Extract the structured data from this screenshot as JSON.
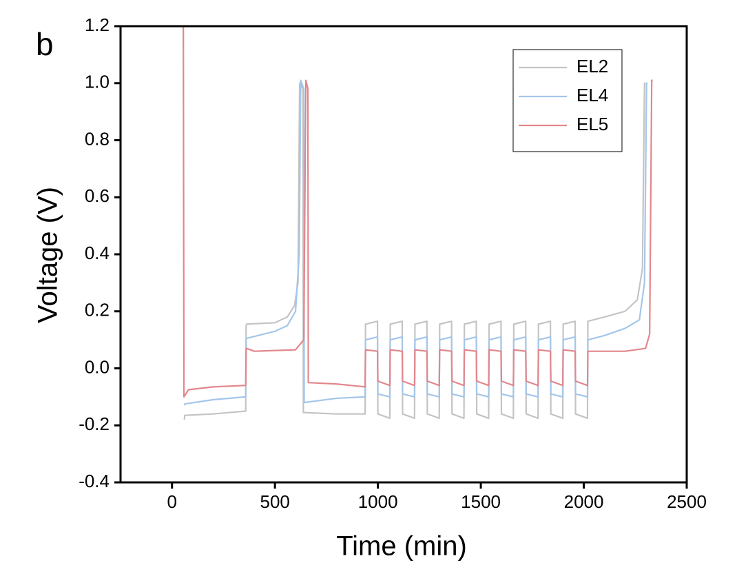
{
  "chart_data": {
    "type": "line",
    "panel_label": "b",
    "x_label": "Time (min)",
    "y_label": "Voltage (V)",
    "xlim": [
      -250,
      2500
    ],
    "ylim": [
      -0.4,
      1.2
    ],
    "xticks": [
      0,
      500,
      1000,
      1500,
      2000,
      2500
    ],
    "yticks": [
      -0.4,
      -0.2,
      {
        "value": 0,
        "label": "0.0"
      },
      0.2,
      0.4,
      0.6,
      0.8,
      {
        "value": 1,
        "label": "1.0"
      },
      1.2
    ],
    "legend": "top right",
    "series": [
      {
        "name": "EL2",
        "color": "#c4c4c4",
        "x": [
          60,
          62,
          200,
          358,
          360,
          362,
          500,
          560,
          595,
          612,
          620,
          636,
          638,
          800,
          938,
          940,
          998,
          1000,
          1058,
          1060,
          1118,
          1120,
          1178,
          1180,
          1238,
          1240,
          1298,
          1300,
          1358,
          1360,
          1418,
          1420,
          1478,
          1480,
          1538,
          1540,
          1598,
          1600,
          1658,
          1660,
          1718,
          1720,
          1778,
          1780,
          1838,
          1840,
          1898,
          1900,
          1958,
          1960,
          2018,
          2020,
          2100,
          2200,
          2260,
          2285,
          2295,
          2300
        ],
        "values": [
          -0.18,
          -0.165,
          -0.16,
          -0.15,
          0.15,
          0.155,
          0.16,
          0.18,
          0.22,
          0.3,
          1.0,
          0.98,
          -0.155,
          -0.16,
          -0.16,
          0.155,
          0.165,
          -0.16,
          -0.175,
          0.155,
          0.165,
          -0.16,
          -0.175,
          0.155,
          0.165,
          -0.16,
          -0.175,
          0.155,
          0.165,
          -0.16,
          -0.175,
          0.155,
          0.165,
          -0.16,
          -0.175,
          0.155,
          0.165,
          -0.16,
          -0.175,
          0.155,
          0.165,
          -0.16,
          -0.175,
          0.155,
          0.165,
          -0.16,
          -0.175,
          0.155,
          0.165,
          -0.16,
          -0.175,
          0.165,
          0.18,
          0.2,
          0.24,
          0.35,
          1.0,
          1.0
        ]
      },
      {
        "name": "EL4",
        "color": "#a4c6ea",
        "x": [
          60,
          62,
          200,
          358,
          360,
          362,
          500,
          560,
          600,
          618,
          625,
          640,
          642,
          800,
          938,
          940,
          998,
          1000,
          1058,
          1060,
          1118,
          1120,
          1178,
          1180,
          1238,
          1240,
          1298,
          1300,
          1358,
          1360,
          1418,
          1420,
          1478,
          1480,
          1538,
          1540,
          1598,
          1600,
          1658,
          1660,
          1718,
          1720,
          1778,
          1780,
          1838,
          1840,
          1898,
          1900,
          1958,
          1960,
          2018,
          2020,
          2100,
          2200,
          2270,
          2295,
          2305,
          2310
        ],
        "values": [
          -0.13,
          -0.125,
          -0.11,
          -0.1,
          0.1,
          0.105,
          0.13,
          0.15,
          0.2,
          0.4,
          1.01,
          0.98,
          -0.12,
          -0.105,
          -0.1,
          0.1,
          0.11,
          -0.09,
          -0.1,
          0.1,
          0.11,
          -0.09,
          -0.1,
          0.1,
          0.11,
          -0.09,
          -0.1,
          0.1,
          0.11,
          -0.09,
          -0.1,
          0.1,
          0.11,
          -0.09,
          -0.1,
          0.1,
          0.11,
          -0.09,
          -0.1,
          0.1,
          0.11,
          -0.09,
          -0.1,
          0.1,
          0.11,
          -0.09,
          -0.1,
          0.1,
          0.11,
          -0.09,
          -0.1,
          0.1,
          0.115,
          0.14,
          0.17,
          0.3,
          1.0,
          1.0
        ]
      },
      {
        "name": "EL5",
        "color": "#e2878c",
        "x": [
          55,
          58,
          80,
          200,
          358,
          360,
          362,
          400,
          600,
          640,
          650,
          660,
          662,
          800,
          938,
          940,
          998,
          1000,
          1058,
          1060,
          1118,
          1120,
          1178,
          1180,
          1238,
          1240,
          1298,
          1300,
          1358,
          1360,
          1418,
          1420,
          1478,
          1480,
          1538,
          1540,
          1598,
          1600,
          1658,
          1660,
          1718,
          1720,
          1778,
          1780,
          1838,
          1840,
          1898,
          1900,
          1958,
          1960,
          2018,
          2020,
          2200,
          2300,
          2320,
          2330,
          2335
        ],
        "values": [
          1.2,
          -0.1,
          -0.075,
          -0.065,
          -0.06,
          0.06,
          0.07,
          0.06,
          0.065,
          0.1,
          1.01,
          0.98,
          -0.05,
          -0.055,
          -0.065,
          0.065,
          0.06,
          -0.045,
          -0.06,
          0.065,
          0.06,
          -0.045,
          -0.06,
          0.065,
          0.06,
          -0.045,
          -0.06,
          0.065,
          0.06,
          -0.045,
          -0.06,
          0.065,
          0.06,
          -0.045,
          -0.06,
          0.065,
          0.06,
          -0.045,
          -0.06,
          0.065,
          0.06,
          -0.045,
          -0.06,
          0.065,
          0.06,
          -0.045,
          -0.06,
          0.065,
          0.06,
          -0.045,
          -0.06,
          0.06,
          0.06,
          0.07,
          0.12,
          1.01,
          1.01
        ]
      }
    ]
  }
}
